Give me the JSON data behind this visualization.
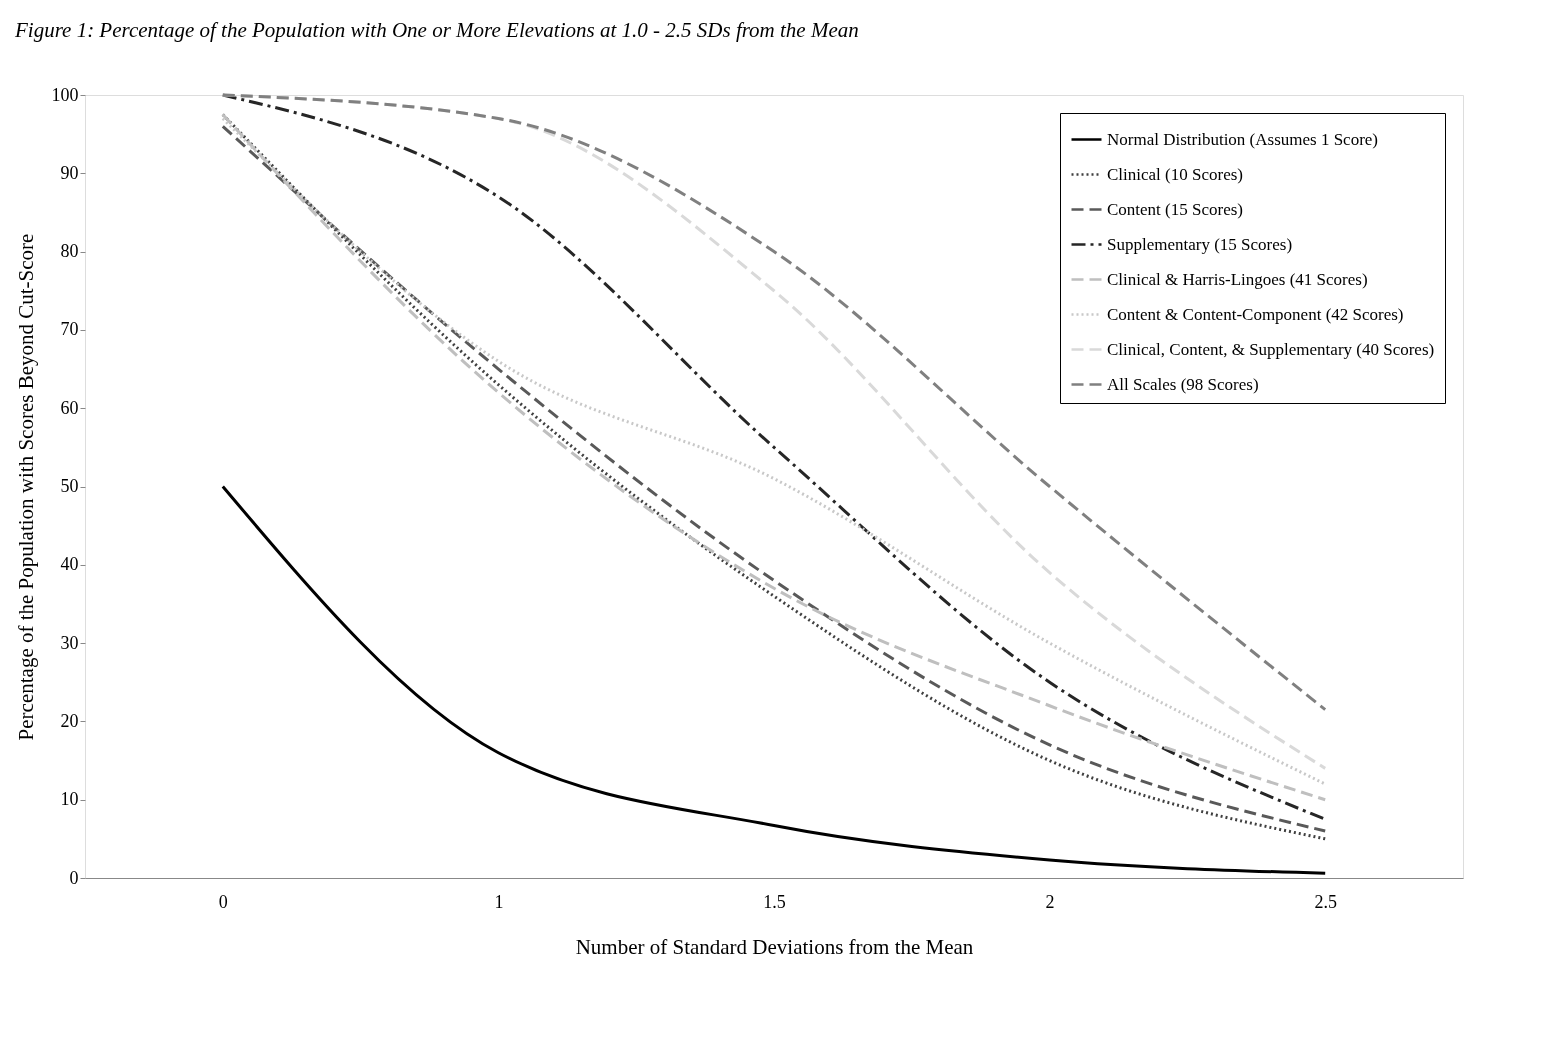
{
  "chart_data": {
    "type": "line",
    "title": "Figure 1:  Percentage of the Population with One or More Elevations at 1.0 - 2.5 SDs from the Mean",
    "xlabel": "Number of Standard Deviations from the Mean",
    "ylabel": "Percentage of the Population with Scores  Beyond Cut-Score",
    "categories": [
      "0",
      "1",
      "1.5",
      "2",
      "2.5"
    ],
    "ylim": [
      0,
      100
    ],
    "yticks": [
      0,
      10,
      20,
      30,
      40,
      50,
      60,
      70,
      80,
      90,
      100
    ],
    "grid": false,
    "legend": "top right",
    "marker": "none",
    "series": [
      {
        "name": "Normal Distribution (Assumes 1 Score)",
        "color": "#000000",
        "line_style": "solid",
        "values": [
          50,
          16,
          6.7,
          2.3,
          0.6
        ]
      },
      {
        "name": "Clinical (10 Scores)",
        "color": "#404040",
        "line_style": "dotted",
        "values": [
          97.5,
          63,
          36,
          15,
          5
        ]
      },
      {
        "name": "Content (15 Scores)",
        "color": "#595959",
        "line_style": "dashed",
        "values": [
          96,
          65,
          38,
          17,
          6
        ]
      },
      {
        "name": "Supplementary (15 Scores)",
        "color": "#262626",
        "line_style": "dashdot",
        "values": [
          100,
          87,
          55,
          25,
          7.5
        ]
      },
      {
        "name": "Clinical & Harris-Lingoes (41 Scores)",
        "color": "#bfbfbf",
        "line_style": "dashed",
        "values": [
          97.5,
          62,
          37,
          22,
          10
        ]
      },
      {
        "name": "Content & Content-Component (42 Scores)",
        "color": "#c8c8c8",
        "line_style": "dotted",
        "values": [
          97,
          66,
          51,
          30,
          12
        ]
      },
      {
        "name": "Clinical, Content, & Supplementary (40 Scores)",
        "color": "#d9d9d9",
        "line_style": "dashed",
        "values": [
          100,
          97,
          75,
          39,
          14
        ]
      },
      {
        "name": "All Scales (98 Scores)",
        "color": "#808080",
        "line_style": "dashed",
        "values": [
          100,
          97,
          80,
          50,
          21.5
        ]
      }
    ]
  }
}
